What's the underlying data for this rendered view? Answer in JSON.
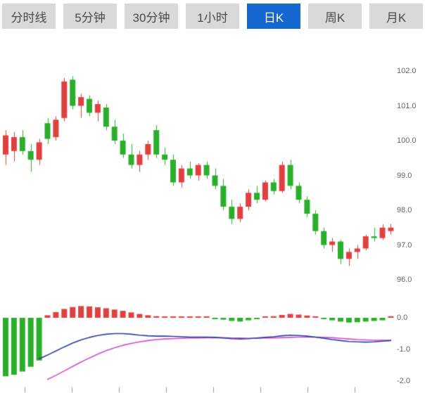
{
  "tabs": {
    "items": [
      {
        "id": "time-line",
        "label": "分时线"
      },
      {
        "id": "5min",
        "label": "5分钟"
      },
      {
        "id": "30min",
        "label": "30分钟"
      },
      {
        "id": "1hour",
        "label": "1小时"
      },
      {
        "id": "daily-k",
        "label": "日K"
      },
      {
        "id": "weekly-k",
        "label": "周K"
      },
      {
        "id": "monthly-k",
        "label": "月K"
      }
    ],
    "active_id": "daily-k"
  },
  "colors": {
    "up": "#e04040",
    "down": "#2bae2b",
    "dif_line": "#2c3e9f",
    "dea_line": "#d14ad1",
    "tab_bg": "#d9d9d9",
    "tab_text": "#4a4a4a",
    "tab_active_bg": "#1567d2",
    "tab_active_text": "#ffffff",
    "axis_text": "#666666",
    "tick_mark": "#999999",
    "background": "#ffffff"
  },
  "chart_data": [
    {
      "type": "candlestick",
      "title": "",
      "note": "Daily K-line, Chinese color convention: red = up, green = down",
      "y_axis": {
        "min": 96,
        "max": 102,
        "tick_labels": [
          "102.0",
          "101.0",
          "100.0",
          "99.0",
          "98.0",
          "97.0",
          "96.0"
        ]
      },
      "grid": false,
      "legend": "none",
      "ohlc": [
        [
          99.6,
          100.3,
          99.3,
          100.15
        ],
        [
          99.7,
          100.25,
          99.4,
          100.1
        ],
        [
          100.1,
          100.3,
          99.6,
          99.7
        ],
        [
          99.7,
          99.9,
          99.1,
          99.45
        ],
        [
          99.45,
          100.05,
          99.3,
          99.95
        ],
        [
          100.5,
          100.65,
          99.9,
          100.05
        ],
        [
          100.1,
          100.7,
          100.0,
          100.6
        ],
        [
          100.65,
          101.8,
          100.55,
          101.7
        ],
        [
          101.75,
          101.85,
          100.9,
          101.0
        ],
        [
          101.0,
          101.35,
          100.65,
          101.25
        ],
        [
          101.2,
          101.3,
          100.7,
          100.8
        ],
        [
          100.8,
          101.15,
          100.55,
          101.05
        ],
        [
          100.95,
          101.05,
          100.3,
          100.4
        ],
        [
          100.4,
          100.6,
          99.9,
          100.0
        ],
        [
          100.0,
          100.2,
          99.5,
          99.6
        ],
        [
          99.6,
          99.9,
          99.2,
          99.3
        ],
        [
          99.3,
          99.7,
          99.1,
          99.6
        ],
        [
          99.6,
          100.0,
          99.45,
          99.9
        ],
        [
          100.3,
          100.45,
          99.5,
          99.6
        ],
        [
          99.6,
          99.8,
          99.3,
          99.45
        ],
        [
          99.45,
          99.6,
          98.7,
          98.8
        ],
        [
          98.8,
          99.3,
          98.65,
          99.2
        ],
        [
          99.2,
          99.4,
          98.9,
          99.0
        ],
        [
          99.0,
          99.35,
          98.85,
          99.3
        ],
        [
          99.3,
          99.4,
          98.9,
          99.0
        ],
        [
          99.0,
          99.2,
          98.6,
          98.7
        ],
        [
          98.7,
          98.9,
          98.0,
          98.1
        ],
        [
          98.1,
          98.3,
          97.6,
          97.75
        ],
        [
          97.75,
          98.2,
          97.65,
          98.1
        ],
        [
          98.1,
          98.6,
          98.0,
          98.5
        ],
        [
          98.5,
          98.7,
          98.2,
          98.3
        ],
        [
          98.3,
          98.85,
          98.25,
          98.8
        ],
        [
          98.8,
          98.9,
          98.45,
          98.55
        ],
        [
          98.55,
          99.4,
          98.5,
          99.3
        ],
        [
          99.3,
          99.45,
          98.6,
          98.7
        ],
        [
          98.7,
          98.8,
          98.2,
          98.3
        ],
        [
          98.3,
          98.4,
          97.8,
          97.9
        ],
        [
          97.9,
          98.0,
          97.3,
          97.4
        ],
        [
          97.4,
          97.5,
          96.9,
          97.0
        ],
        [
          97.0,
          97.2,
          96.8,
          97.1
        ],
        [
          97.1,
          97.15,
          96.45,
          96.6
        ],
        [
          96.6,
          96.9,
          96.4,
          96.8
        ],
        [
          96.8,
          97.0,
          96.6,
          96.9
        ],
        [
          96.9,
          97.3,
          96.85,
          97.25
        ],
        [
          97.25,
          97.5,
          97.1,
          97.2
        ],
        [
          97.2,
          97.6,
          97.15,
          97.5
        ],
        [
          97.4,
          97.6,
          97.3,
          97.5
        ]
      ]
    },
    {
      "type": "macd",
      "title": "",
      "y_axis": {
        "min": -2.0,
        "max": 0.5,
        "tick_labels": [
          "0.0",
          "-1.0",
          "-2.0"
        ]
      },
      "x_axis": {
        "tick_count": 8
      },
      "histogram": [
        -1.85,
        -1.8,
        -1.7,
        -1.55,
        -1.35,
        0.08,
        0.18,
        0.28,
        0.34,
        0.37,
        0.36,
        0.33,
        0.3,
        0.26,
        0.22,
        0.17,
        0.12,
        0.08,
        0.05,
        0.03,
        0.02,
        0.03,
        0.02,
        0.02,
        0.01,
        -0.02,
        -0.06,
        -0.1,
        -0.12,
        -0.08,
        -0.04,
        0.02,
        0.05,
        0.09,
        0.12,
        0.1,
        0.07,
        0.04,
        -0.03,
        -0.08,
        -0.12,
        -0.15,
        -0.14,
        -0.12,
        -0.1,
        -0.08,
        0.05
      ],
      "dif": [
        null,
        null,
        null,
        null,
        -1.3,
        -1.18,
        -1.05,
        -0.92,
        -0.8,
        -0.7,
        -0.62,
        -0.56,
        -0.52,
        -0.5,
        -0.5,
        -0.52,
        -0.55,
        -0.57,
        -0.58,
        -0.58,
        -0.59,
        -0.6,
        -0.61,
        -0.61,
        -0.61,
        -0.62,
        -0.64,
        -0.66,
        -0.67,
        -0.66,
        -0.64,
        -0.62,
        -0.6,
        -0.57,
        -0.55,
        -0.56,
        -0.58,
        -0.61,
        -0.65,
        -0.69,
        -0.72,
        -0.75,
        -0.76,
        -0.77,
        -0.76,
        -0.74,
        -0.72
      ],
      "dea": [
        null,
        null,
        null,
        null,
        null,
        -1.95,
        -1.82,
        -1.68,
        -1.54,
        -1.4,
        -1.27,
        -1.15,
        -1.04,
        -0.95,
        -0.87,
        -0.81,
        -0.76,
        -0.72,
        -0.69,
        -0.67,
        -0.66,
        -0.65,
        -0.64,
        -0.64,
        -0.63,
        -0.63,
        -0.63,
        -0.64,
        -0.64,
        -0.65,
        -0.65,
        -0.64,
        -0.64,
        -0.63,
        -0.62,
        -0.61,
        -0.61,
        -0.61,
        -0.62,
        -0.63,
        -0.65,
        -0.67,
        -0.69,
        -0.7,
        -0.71,
        -0.71,
        -0.71
      ]
    }
  ]
}
